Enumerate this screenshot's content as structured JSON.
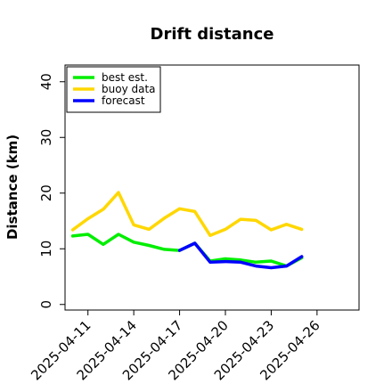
{
  "chart_data": {
    "type": "line",
    "title": "Drift distance",
    "xlabel": "",
    "ylabel": "Distance (km)",
    "ylim": [
      -1,
      43
    ],
    "xlim": [
      "2025-04-09T12:00",
      "2025-04-28T18:00"
    ],
    "yticks": [
      0,
      10,
      20,
      30,
      40
    ],
    "xticks": [
      "2025-04-11",
      "2025-04-14",
      "2025-04-17",
      "2025-04-20",
      "2025-04-23",
      "2025-04-26"
    ],
    "highlighted_xtick": "2025-04-17",
    "highlight_color": "#228b22",
    "grid": false,
    "legend_position": "top-left",
    "series": [
      {
        "name": "best est.",
        "color": "#00ee00",
        "x": [
          "2025-04-10T00:00",
          "2025-04-11T00:00",
          "2025-04-12T00:00",
          "2025-04-13T00:00",
          "2025-04-14T00:00",
          "2025-04-15T00:00",
          "2025-04-16T00:00",
          "2025-04-17T00:00",
          "2025-04-18T00:00",
          "2025-04-19T00:00",
          "2025-04-20T00:00",
          "2025-04-21T00:00",
          "2025-04-22T00:00",
          "2025-04-23T00:00",
          "2025-04-24T00:00",
          "2025-04-25T00:00"
        ],
        "y": [
          12.3,
          12.6,
          10.8,
          12.6,
          11.2,
          10.6,
          9.9,
          9.7,
          11.0,
          7.8,
          8.2,
          8.0,
          7.6,
          7.8,
          6.9,
          8.4
        ]
      },
      {
        "name": "buoy data",
        "color": "#ffd700",
        "x": [
          "2025-04-10T00:00",
          "2025-04-11T00:00",
          "2025-04-12T00:00",
          "2025-04-13T00:00",
          "2025-04-14T00:00",
          "2025-04-15T00:00",
          "2025-04-16T00:00",
          "2025-04-17T00:00",
          "2025-04-18T00:00",
          "2025-04-19T00:00",
          "2025-04-20T00:00",
          "2025-04-21T00:00",
          "2025-04-22T00:00",
          "2025-04-23T00:00",
          "2025-04-24T00:00",
          "2025-04-25T00:00"
        ],
        "y": [
          13.4,
          15.4,
          17.1,
          20.1,
          14.3,
          13.5,
          15.5,
          17.2,
          16.7,
          12.4,
          13.5,
          15.3,
          15.1,
          13.4,
          14.4,
          13.5
        ]
      },
      {
        "name": "forecast",
        "color": "#0000ff",
        "x": [
          "2025-04-17T00:00",
          "2025-04-18T00:00",
          "2025-04-19T00:00",
          "2025-04-20T00:00",
          "2025-04-21T00:00",
          "2025-04-22T00:00",
          "2025-04-23T00:00",
          "2025-04-24T00:00",
          "2025-04-25T00:00"
        ],
        "y": [
          9.7,
          11.0,
          7.6,
          7.7,
          7.6,
          6.9,
          6.6,
          6.9,
          8.6
        ]
      }
    ]
  }
}
